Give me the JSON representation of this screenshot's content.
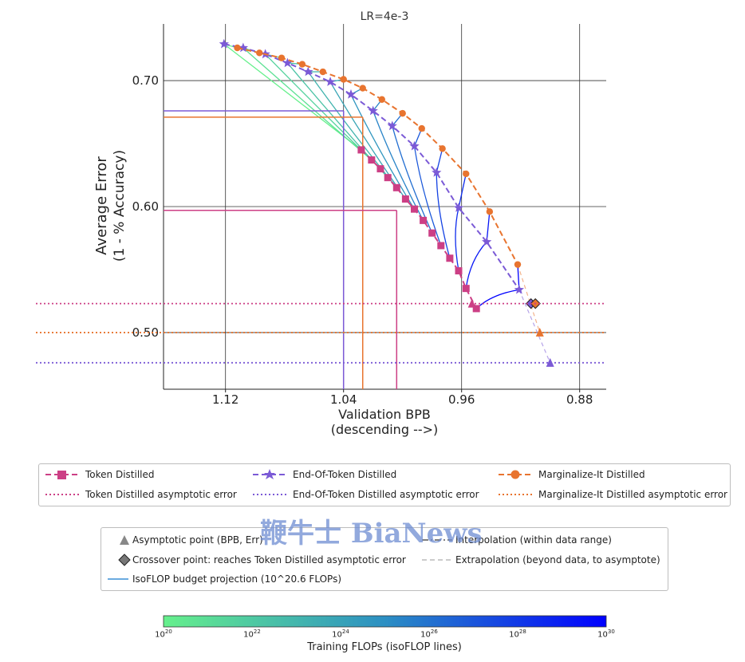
{
  "chart_data": {
    "type": "line",
    "title": "LR=4e-3",
    "xlabel": "Validation BPB",
    "xlabel_sub": "(descending -->)",
    "ylabel": "Average Error",
    "ylabel_sub": "(1 - % Accuracy)",
    "x_reversed": true,
    "xlim": [
      1.162,
      0.862
    ],
    "ylim": [
      0.455,
      0.745
    ],
    "grid": true,
    "x_ticks": [
      1.12,
      1.04,
      0.96,
      0.88
    ],
    "x_tick_labels": [
      "1.12",
      "1.04",
      "0.96",
      "0.88"
    ],
    "y_ticks": [
      0.5,
      0.6,
      0.7
    ],
    "y_tick_labels": [
      "0.50",
      "0.60",
      "0.70"
    ],
    "series": [
      {
        "name": "Token Distilled",
        "color": "#cc3f85",
        "marker": "square",
        "x": [
          1.028,
          1.021,
          1.015,
          1.01,
          1.004,
          0.998,
          0.992,
          0.986,
          0.98,
          0.974,
          0.968,
          0.962,
          0.957,
          0.95
        ],
        "y": [
          0.645,
          0.637,
          0.63,
          0.623,
          0.615,
          0.606,
          0.598,
          0.589,
          0.579,
          0.569,
          0.559,
          0.549,
          0.535,
          0.519
        ]
      },
      {
        "name": "End-Of-Token Distilled",
        "color": "#7b5ad6",
        "marker": "star",
        "x": [
          1.121,
          1.108,
          1.093,
          1.078,
          1.064,
          1.049,
          1.035,
          1.02,
          1.007,
          0.992,
          0.977,
          0.962,
          0.943,
          0.921
        ],
        "y": [
          0.729,
          0.726,
          0.721,
          0.714,
          0.707,
          0.699,
          0.689,
          0.676,
          0.664,
          0.648,
          0.627,
          0.599,
          0.572,
          0.534
        ]
      },
      {
        "name": "Marginalize-It Distilled",
        "color": "#e8742f",
        "marker": "circle",
        "x": [
          1.112,
          1.097,
          1.082,
          1.068,
          1.054,
          1.04,
          1.027,
          1.014,
          1.0,
          0.987,
          0.973,
          0.957,
          0.941,
          0.922
        ],
        "y": [
          0.726,
          0.722,
          0.718,
          0.713,
          0.707,
          0.701,
          0.694,
          0.685,
          0.674,
          0.662,
          0.646,
          0.626,
          0.596,
          0.554
        ]
      }
    ],
    "asymptotic_errors": [
      {
        "name": "Token Distilled asymptotic error",
        "value": 0.523,
        "color": "#cc3f85"
      },
      {
        "name": "End-Of-Token Distilled asymptotic error",
        "value": 0.476,
        "color": "#7b5ad6"
      },
      {
        "name": "Marginalize-It Distilled asymptotic error",
        "value": 0.5,
        "color": "#e8742f"
      }
    ],
    "asymptotic_points": [
      {
        "series": "Token Distilled",
        "x": 0.953,
        "y": 0.523,
        "color": "#cc3f85"
      },
      {
        "series": "Marginalize-It Distilled",
        "x": 0.907,
        "y": 0.5,
        "color": "#e8742f"
      },
      {
        "series": "End-Of-Token Distilled",
        "x": 0.9,
        "y": 0.476,
        "color": "#7b5ad6"
      }
    ],
    "crossover_points": [
      {
        "series": "End-Of-Token Distilled",
        "x": 0.913,
        "y": 0.523,
        "color": "#7b5ad6"
      },
      {
        "series": "Marginalize-It Distilled",
        "x": 0.91,
        "y": 0.523,
        "color": "#e8742f"
      }
    ],
    "isoflop_budget": "10^20.6",
    "isoflop_projection": [
      {
        "series": "End-Of-Token Distilled",
        "x": 1.04,
        "y": 0.676,
        "color": "#7b5ad6"
      },
      {
        "series": "Marginalize-It Distilled",
        "x": 1.027,
        "y": 0.671,
        "color": "#e8742f"
      },
      {
        "series": "Token Distilled",
        "x": 1.004,
        "y": 0.597,
        "color": "#cc3f85"
      }
    ],
    "colorbar": {
      "label": "Training FLOPs (isoFLOP lines)",
      "min_exp": 20,
      "max_exp": 30,
      "ticks": [
        "20",
        "22",
        "24",
        "26",
        "28",
        "30"
      ],
      "color_low": "#66f08c",
      "color_high": "#0000ff"
    }
  },
  "legend_top": {
    "entries": [
      {
        "label": "Token Distilled",
        "color": "#cc3f85",
        "style": "dashed-square"
      },
      {
        "label": "End-Of-Token Distilled",
        "color": "#7b5ad6",
        "style": "dashed-star"
      },
      {
        "label": "Marginalize-It Distilled",
        "color": "#e8742f",
        "style": "dashed-circle"
      },
      {
        "label": "Token Distilled asymptotic error",
        "color": "#cc3f85",
        "style": "dotted"
      },
      {
        "label": "End-Of-Token Distilled asymptotic error",
        "color": "#7b5ad6",
        "style": "dotted"
      },
      {
        "label": "Marginalize-It Distilled asymptotic error",
        "color": "#e8742f",
        "style": "dotted"
      }
    ]
  },
  "legend_bottom": {
    "entries": [
      {
        "label": "Asymptotic point (BPB, Err)",
        "style": "triangle",
        "color": "#888888"
      },
      {
        "label": "Interpolation (within data range)",
        "style": "dashdot",
        "color": "#555555"
      },
      {
        "label": "Crossover point: reaches Token Distilled asymptotic error",
        "style": "diamond",
        "color": "#777777"
      },
      {
        "label": "Extrapolation (beyond data, to asymptote)",
        "style": "dashed-light",
        "color": "#bbbbbb"
      },
      {
        "label": "IsoFLOP budget projection (10^20.6 FLOPs)",
        "style": "solid",
        "color": "#3a8fd6"
      }
    ]
  },
  "watermark": "鞭牛士 BiaNews"
}
